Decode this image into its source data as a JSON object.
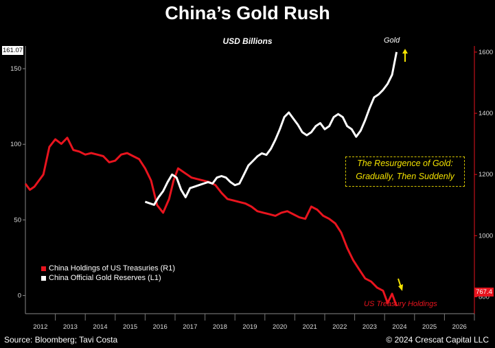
{
  "title": "China’s Gold Rush",
  "subtitle": "USD Billions",
  "source": "Source: Bloomberg; Tavi Costa",
  "copyright": "© 2024 Crescat Capital LLC",
  "annotation": {
    "line1": "The Resurgence of Gold:",
    "line2": "Gradually, Then Suddenly"
  },
  "labels": {
    "gold": "Gold",
    "treasury": "US Treasury Holdings"
  },
  "last_values": {
    "left": "161.07",
    "right": "767.4"
  },
  "colors": {
    "gold_series": "#ffffff",
    "treasury_series": "#e8141e",
    "annotation": "#f4e300",
    "background": "#000000"
  },
  "chart_data": {
    "type": "line",
    "x_ticks": [
      "2012",
      "2013",
      "2014",
      "2015",
      "2016",
      "2017",
      "2018",
      "2019",
      "2020",
      "2021",
      "2022",
      "2023",
      "2024",
      "2025",
      "2026"
    ],
    "y_left_ticks": [
      "0",
      "50",
      "100",
      "150"
    ],
    "y_right_ticks": [
      "800",
      "1000",
      "1200",
      "1400",
      "1600"
    ],
    "y_left_range": [
      -12,
      165
    ],
    "y_right_range": [
      745,
      1620
    ],
    "x_range": [
      2011.5,
      2026.5
    ],
    "legend_placement": "bottom-left",
    "series": [
      {
        "name": "China Holdings of US Treasuries (R1)",
        "axis": "right",
        "color": "#e8141e",
        "x": [
          2011.5,
          2011.65,
          2011.8,
          2011.95,
          2012.1,
          2012.3,
          2012.5,
          2012.7,
          2012.9,
          2013.1,
          2013.3,
          2013.5,
          2013.7,
          2013.9,
          2014.1,
          2014.3,
          2014.5,
          2014.7,
          2014.9,
          2015.1,
          2015.3,
          2015.5,
          2015.7,
          2015.9,
          2016.1,
          2016.3,
          2016.45,
          2016.6,
          2016.75,
          2016.9,
          2017.05,
          2017.25,
          2017.45,
          2017.65,
          2017.85,
          2018.05,
          2018.25,
          2018.45,
          2018.65,
          2018.85,
          2019.05,
          2019.25,
          2019.45,
          2019.65,
          2019.85,
          2020.05,
          2020.25,
          2020.45,
          2020.65,
          2020.85,
          2021.05,
          2021.25,
          2021.45,
          2021.65,
          2021.85,
          2022.05,
          2022.25,
          2022.45,
          2022.65,
          2022.85,
          2023.05,
          2023.25,
          2023.45,
          2023.6,
          2023.75,
          2023.9
        ],
        "values": [
          1170,
          1150,
          1160,
          1180,
          1200,
          1290,
          1315,
          1300,
          1320,
          1280,
          1275,
          1265,
          1270,
          1265,
          1260,
          1240,
          1245,
          1265,
          1270,
          1260,
          1250,
          1220,
          1180,
          1100,
          1075,
          1120,
          1180,
          1220,
          1210,
          1200,
          1190,
          1185,
          1180,
          1175,
          1165,
          1140,
          1120,
          1115,
          1110,
          1105,
          1095,
          1080,
          1075,
          1070,
          1065,
          1075,
          1080,
          1070,
          1060,
          1055,
          1095,
          1085,
          1065,
          1055,
          1040,
          1010,
          960,
          920,
          890,
          860,
          850,
          830,
          820,
          780,
          810,
          770
        ]
      },
      {
        "name": "China Official Gold Reserves (L1)",
        "axis": "left",
        "color": "#ffffff",
        "x": [
          2015.5,
          2015.65,
          2015.8,
          2015.95,
          2016.1,
          2016.25,
          2016.4,
          2016.55,
          2016.7,
          2016.85,
          2017.0,
          2017.15,
          2017.3,
          2017.45,
          2017.6,
          2017.75,
          2017.9,
          2018.05,
          2018.2,
          2018.35,
          2018.5,
          2018.65,
          2018.8,
          2018.95,
          2019.1,
          2019.25,
          2019.4,
          2019.55,
          2019.7,
          2019.85,
          2020.0,
          2020.15,
          2020.3,
          2020.45,
          2020.6,
          2020.75,
          2020.9,
          2021.05,
          2021.2,
          2021.35,
          2021.5,
          2021.65,
          2021.8,
          2021.95,
          2022.1,
          2022.25,
          2022.4,
          2022.55,
          2022.7,
          2022.85,
          2023.0,
          2023.15,
          2023.3,
          2023.45,
          2023.6,
          2023.75,
          2023.9
        ],
        "values": [
          62,
          61,
          60,
          65,
          69,
          75,
          80,
          78,
          70,
          65,
          71,
          72,
          73,
          74,
          75,
          74,
          78,
          79,
          78,
          75,
          73,
          74,
          80,
          86,
          89,
          92,
          94,
          93,
          97,
          103,
          110,
          118,
          121,
          117,
          113,
          108,
          106,
          108,
          112,
          114,
          110,
          112,
          118,
          120,
          118,
          112,
          110,
          105,
          109,
          116,
          124,
          131,
          133,
          136,
          140,
          146,
          161
        ]
      }
    ]
  }
}
